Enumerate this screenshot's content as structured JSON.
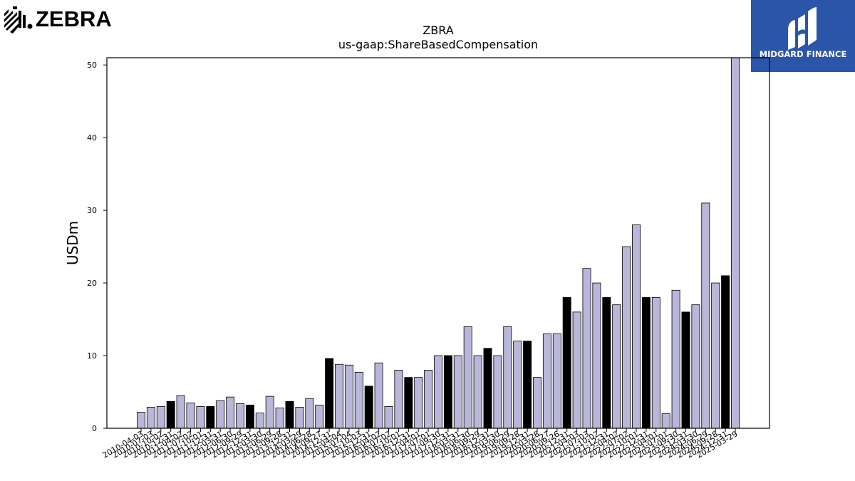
{
  "brand": {
    "logo_text": "ZEBRA",
    "publisher": "MIDGARD FINANCE"
  },
  "colors": {
    "bar_default": "#b9b7d9",
    "bar_highlight": "#000000",
    "bar_edge": "#000000",
    "publisher_bg": "#2b55a8"
  },
  "chart_data": {
    "type": "bar",
    "title": "ZBRA",
    "subtitle": "us-gaap:ShareBasedCompensation",
    "xlabel": "",
    "ylabel": "USDm",
    "ylim": [
      0,
      51
    ],
    "yticks": [
      0,
      10,
      20,
      30,
      40,
      50
    ],
    "grid": false,
    "categories": [
      "2010-04-03",
      "2010-07-03",
      "2010-10-02",
      "2010-12-31",
      "2011-04-02",
      "2011-07-02",
      "2011-10-01",
      "2011-12-31",
      "2012-03-31",
      "2012-06-30",
      "2012-09-29",
      "2012-12-31",
      "2013-03-30",
      "2013-06-29",
      "2013-09-28",
      "2013-12-31",
      "2014-03-29",
      "2014-06-28",
      "2014-09-27",
      "2014-12-31",
      "2015-04-04",
      "2015-07-04",
      "2015-10-03",
      "2015-12-31",
      "2016-04-02",
      "2016-07-02",
      "2016-10-01",
      "2016-12-31",
      "2017-04-01",
      "2017-07-01",
      "2017-09-30",
      "2017-12-31",
      "2018-03-31",
      "2018-06-30",
      "2018-09-29",
      "2018-12-31",
      "2019-03-30",
      "2019-06-29",
      "2019-09-28",
      "2019-12-31",
      "2020-03-28",
      "2020-06-27",
      "2020-09-26",
      "2020-12-31",
      "2021-04-03",
      "2021-07-03",
      "2021-10-02",
      "2021-12-31",
      "2022-04-02",
      "2022-07-02",
      "2022-10-01",
      "2022-12-31",
      "2023-04-01",
      "2023-07-01",
      "2023-09-30",
      "2023-12-31",
      "2024-03-30",
      "2024-06-29",
      "2024-09-28",
      "2024-12-31",
      "2025-03-29"
    ],
    "values": [
      2.2,
      2.9,
      3.0,
      3.7,
      4.5,
      3.5,
      3.0,
      3.0,
      3.8,
      4.3,
      3.4,
      3.2,
      2.1,
      4.4,
      2.8,
      3.7,
      2.9,
      4.1,
      3.2,
      9.6,
      8.8,
      8.7,
      7.7,
      5.8,
      9.0,
      3.0,
      8.0,
      7.0,
      7.0,
      8.0,
      10.0,
      10.0,
      10.0,
      14.0,
      10.0,
      11.0,
      10.0,
      14.0,
      12.0,
      12.0,
      7.0,
      13.0,
      13.0,
      18.0,
      16.0,
      22.0,
      20.0,
      18.0,
      17.0,
      25.0,
      28.0,
      18.0,
      18.0,
      2.0,
      19.0,
      16.0,
      17.0,
      31.0,
      20.0,
      21.0,
      51.0
    ],
    "highlight_categories": [
      "2010-12-31",
      "2011-12-31",
      "2012-12-31",
      "2013-12-31",
      "2014-12-31",
      "2015-12-31",
      "2016-12-31",
      "2017-12-31",
      "2018-12-31",
      "2019-12-31",
      "2020-12-31",
      "2021-12-31",
      "2022-12-31",
      "2023-12-31",
      "2024-12-31"
    ]
  }
}
